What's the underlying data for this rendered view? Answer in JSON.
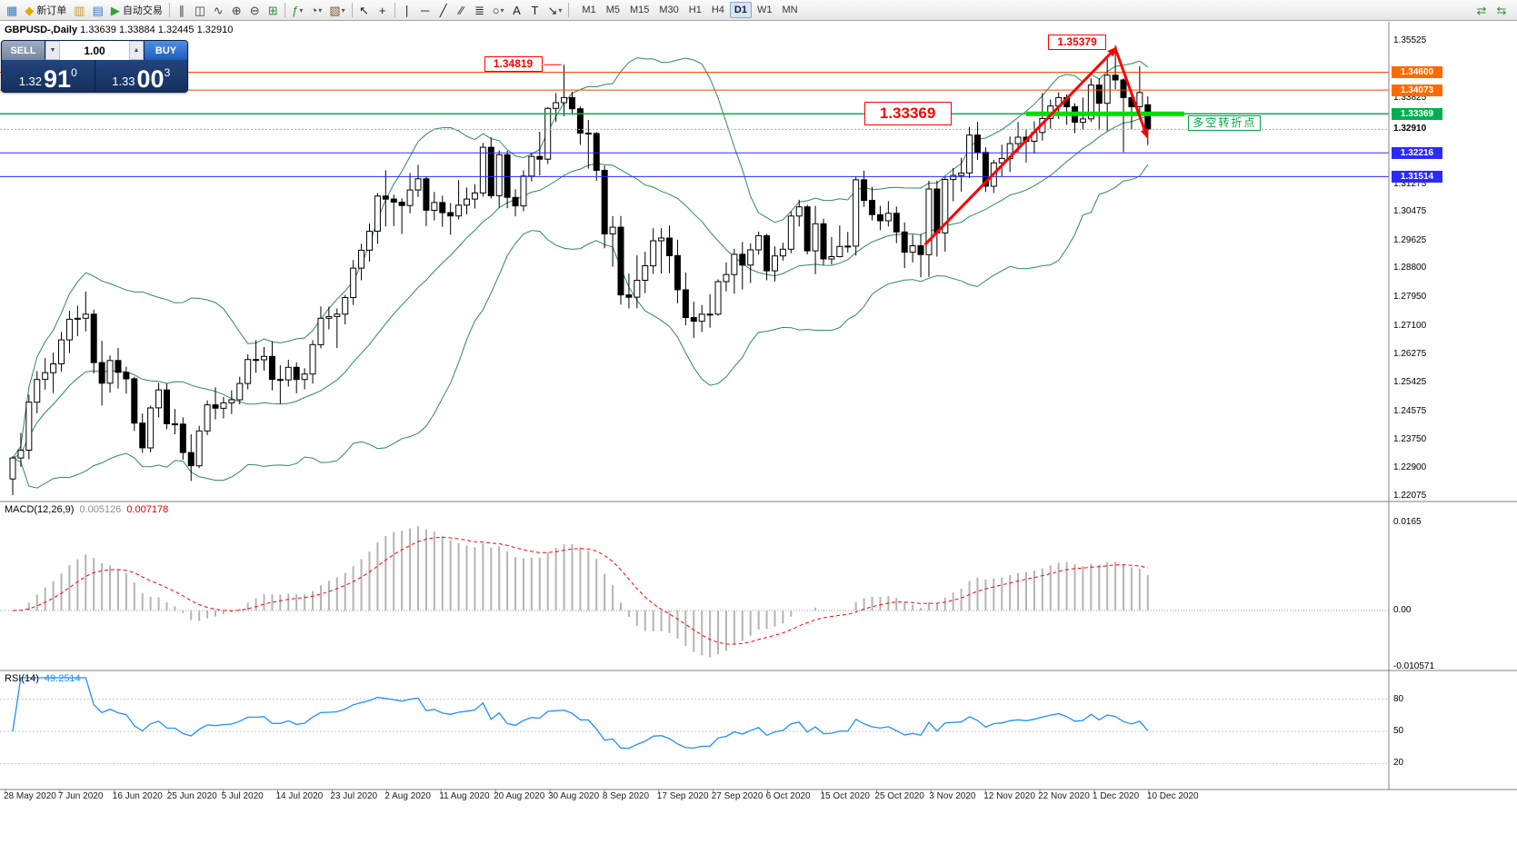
{
  "toolbar": {
    "items": [
      {
        "name": "terminal-icon",
        "glyph": "▦",
        "color": "#3a7abd"
      },
      {
        "name": "new-order-button",
        "glyph": "◆",
        "color": "#e0a800",
        "label": "新订单"
      },
      {
        "name": "charts-icon",
        "glyph": "▥",
        "color": "#c59a34"
      },
      {
        "name": "profiles-icon",
        "glyph": "▤",
        "color": "#3a7abd"
      },
      {
        "name": "autotrading-button",
        "glyph": "▶",
        "color": "#2fa52f",
        "label": "自动交易"
      },
      {
        "sep": true
      },
      {
        "name": "bar-chart-type-icon",
        "glyph": "∥",
        "color": "#444"
      },
      {
        "name": "candlestick-type-icon",
        "glyph": "◫",
        "color": "#444"
      },
      {
        "name": "line-chart-type-icon",
        "glyph": "∿",
        "color": "#444"
      },
      {
        "name": "zoom-in-icon",
        "glyph": "⊕",
        "color": "#444"
      },
      {
        "name": "zoom-out-icon",
        "glyph": "⊖",
        "color": "#444"
      },
      {
        "name": "tile-windows-icon",
        "glyph": "⊞",
        "color": "#2f8f2f"
      },
      {
        "sep": true
      },
      {
        "name": "indicators-icon",
        "glyph": "ƒ",
        "color": "#2f8f2f",
        "dropdown": true
      },
      {
        "name": "periods-icon",
        "glyph": "◔",
        "color": "#444",
        "dropdown": true
      },
      {
        "name": "templates-icon",
        "glyph": "▧",
        "color": "#7a5c2e",
        "dropdown": true
      },
      {
        "sep": true
      },
      {
        "name": "cursor-icon",
        "glyph": "↖",
        "color": "#222"
      },
      {
        "name": "crosshair-icon",
        "glyph": "+",
        "color": "#222"
      },
      {
        "sep": true
      },
      {
        "name": "vertical-line-icon",
        "glyph": "∣",
        "color": "#222"
      },
      {
        "name": "horizontal-line-icon",
        "glyph": "─",
        "color": "#222"
      },
      {
        "name": "trendline-icon",
        "glyph": "╱",
        "color": "#222"
      },
      {
        "name": "channel-icon",
        "glyph": "∕∕",
        "color": "#222"
      },
      {
        "name": "fibonacci-icon",
        "glyph": "≣",
        "color": "#222"
      },
      {
        "name": "shapes-icon",
        "glyph": "○",
        "color": "#222",
        "dropdown": true
      },
      {
        "name": "text-icon",
        "glyph": "A",
        "color": "#222"
      },
      {
        "name": "text-label-icon",
        "glyph": "T",
        "color": "#222"
      },
      {
        "name": "arrows-icon",
        "glyph": "↘",
        "color": "#222",
        "dropdown": true
      },
      {
        "sep": true
      }
    ],
    "timeframes": [
      "M1",
      "M5",
      "M15",
      "M30",
      "H1",
      "H4",
      "D1",
      "W1",
      "MN"
    ],
    "active_timeframe": "D1",
    "right_items": [
      {
        "name": "chart-shift-icon",
        "glyph": "⇄",
        "color": "#2f8f2f"
      },
      {
        "name": "auto-scroll-icon",
        "glyph": "⇆",
        "color": "#2f8f2f"
      }
    ]
  },
  "chart": {
    "title_symbol": "GBPUSD-,Daily",
    "title_ohlc": "1.33639 1.33884 1.32445 1.32910"
  },
  "one_click": {
    "sell_label": "SELL",
    "buy_label": "BUY",
    "volume": "1.00",
    "step_down": "▼",
    "step_up": "▲",
    "sell_price": {
      "head": "1.32",
      "big": "91",
      "sup": "0"
    },
    "buy_price": {
      "head": "1.33",
      "big": "00",
      "sup": "3"
    }
  },
  "annotations": {
    "price_labels": [
      {
        "text": "1.34819",
        "bar": 68,
        "price": 1.34819,
        "style": "small"
      },
      {
        "text": "1.35379",
        "bar": 136,
        "price": 1.35379,
        "style": "small"
      },
      {
        "text": "1.33369",
        "bar": 105,
        "price": 1.33369,
        "style": "large"
      }
    ],
    "note": {
      "text": "多空转折点",
      "bar": 145,
      "price": 1.33369
    },
    "trend_arrows": [
      {
        "from_bar": 112.5,
        "from_price": 1.295,
        "to_bar": 136,
        "to_price": 1.353,
        "width": 3,
        "color": "#ff0000"
      },
      {
        "from_bar": 136,
        "from_price": 1.353,
        "to_bar": 139.9,
        "to_price": 1.327,
        "width": 3,
        "color": "#ff0000"
      }
    ],
    "green_segment": {
      "price": 1.33369,
      "from_bar": 125,
      "to_bar": 144.5,
      "color": "#00dd00",
      "width": 5
    }
  },
  "chart_data": {
    "type": "candlestick",
    "symbol": "GBPUSD-",
    "timeframe": "Daily",
    "current_bar": {
      "open": 1.33639,
      "high": 1.33884,
      "low": 1.32445,
      "close": 1.3291
    },
    "bid": {
      "price": 1.3291,
      "label": "1.32910"
    },
    "y_axis_ticks": [
      "1.35525",
      "1.33825",
      "1.31275",
      "1.30475",
      "1.29625",
      "1.28800",
      "1.27950",
      "1.27100",
      "1.26275",
      "1.25425",
      "1.24575",
      "1.23750",
      "1.22900",
      "1.22075"
    ],
    "hlines": [
      {
        "price": 1.346,
        "label": "1.34600",
        "color": "#ff4000",
        "badge": "#ff6a00",
        "width": 1
      },
      {
        "price": 1.34073,
        "label": "1.34073",
        "color": "#ff4000",
        "badge": "#ff6a00",
        "width": 1
      },
      {
        "price": 1.33369,
        "label": "1.33369",
        "color": "#00b050",
        "badge": "#00b050",
        "width": 1.5
      },
      {
        "price": 1.32216,
        "label": "1.32216",
        "color": "#2a2aff",
        "badge": "#2a2aff",
        "width": 1
      },
      {
        "price": 1.31514,
        "label": "1.31514",
        "color": "#2a2aff",
        "badge": "#2a2aff",
        "width": 1
      }
    ],
    "bollinger": {
      "period": 20,
      "deviation": 2,
      "color": "#2e8b57"
    },
    "x_axis_dates": [
      "28 May 2020",
      "7 Jun 2020",
      "16 Jun 2020",
      "25 Jun 2020",
      "5 Jul 2020",
      "14 Jul 2020",
      "23 Jul 2020",
      "2 Aug 2020",
      "11 Aug 2020",
      "20 Aug 2020",
      "30 Aug 2020",
      "8 Sep 2020",
      "17 Sep 2020",
      "27 Sep 2020",
      "6 Oct 2020",
      "15 Oct 2020",
      "25 Oct 2020",
      "3 Nov 2020",
      "12 Nov 2020",
      "22 Nov 2020",
      "1 Dec 2020",
      "10 Dec 2020"
    ],
    "indicators": {
      "macd": {
        "label": "MACD(12,26,9)",
        "value_main": "0.005126",
        "value_signal": "0.007178",
        "axis": [
          {
            "t": "0.0165",
            "v": 0.0165
          },
          {
            "t": "0.00",
            "v": 0
          },
          {
            "t": "-0.010571",
            "v": -0.010571
          }
        ]
      },
      "rsi": {
        "label": "RSI(14)",
        "value": "49.2514",
        "axis": [
          {
            "t": "80",
            "v": 80
          },
          {
            "t": "50",
            "v": 50
          },
          {
            "t": "20",
            "v": 20
          }
        ]
      }
    },
    "candles": [
      [
        1.2258,
        1.2325,
        1.221,
        1.232
      ],
      [
        1.232,
        1.2394,
        1.2294,
        1.2343
      ],
      [
        1.2343,
        1.2507,
        1.2316,
        1.2485
      ],
      [
        1.2485,
        1.2577,
        1.2452,
        1.2552
      ],
      [
        1.2552,
        1.2615,
        1.2522,
        1.2572
      ],
      [
        1.2572,
        1.2631,
        1.2512,
        1.2598
      ],
      [
        1.2598,
        1.2692,
        1.2575,
        1.2669
      ],
      [
        1.2669,
        1.2755,
        1.263,
        1.273
      ],
      [
        1.273,
        1.277,
        1.268,
        1.2733
      ],
      [
        1.2733,
        1.2812,
        1.2694,
        1.2745
      ],
      [
        1.2745,
        1.2758,
        1.257,
        1.2602
      ],
      [
        1.2602,
        1.2666,
        1.2475,
        1.2541
      ],
      [
        1.2541,
        1.2623,
        1.2513,
        1.2608
      ],
      [
        1.2608,
        1.2645,
        1.2525,
        1.2573
      ],
      [
        1.2573,
        1.259,
        1.251,
        1.2554
      ],
      [
        1.2554,
        1.256,
        1.24,
        1.2423
      ],
      [
        1.2423,
        1.2451,
        1.2335,
        1.235
      ],
      [
        1.235,
        1.2475,
        1.2337,
        1.2468
      ],
      [
        1.2468,
        1.2542,
        1.244,
        1.2521
      ],
      [
        1.2521,
        1.254,
        1.2405,
        1.2421
      ],
      [
        1.2421,
        1.2465,
        1.239,
        1.242
      ],
      [
        1.242,
        1.244,
        1.2315,
        1.2336
      ],
      [
        1.2336,
        1.239,
        1.2252,
        1.2297
      ],
      [
        1.2297,
        1.2415,
        1.229,
        1.24
      ],
      [
        1.24,
        1.249,
        1.2388,
        1.2477
      ],
      [
        1.2477,
        1.2529,
        1.2434,
        1.2467
      ],
      [
        1.2467,
        1.25,
        1.2437,
        1.2483
      ],
      [
        1.2483,
        1.252,
        1.245,
        1.2492
      ],
      [
        1.2492,
        1.256,
        1.2478,
        1.254
      ],
      [
        1.254,
        1.2626,
        1.2523,
        1.2611
      ],
      [
        1.2611,
        1.2668,
        1.2572,
        1.261
      ],
      [
        1.261,
        1.2648,
        1.2578,
        1.262
      ],
      [
        1.262,
        1.2665,
        1.252,
        1.2552
      ],
      [
        1.2552,
        1.2594,
        1.248,
        1.2551
      ],
      [
        1.2551,
        1.261,
        1.2531,
        1.2588
      ],
      [
        1.2588,
        1.2603,
        1.2511,
        1.2552
      ],
      [
        1.2552,
        1.2585,
        1.2523,
        1.2568
      ],
      [
        1.2568,
        1.2668,
        1.254,
        1.2655
      ],
      [
        1.2655,
        1.2768,
        1.2644,
        1.2733
      ],
      [
        1.2733,
        1.2767,
        1.27,
        1.2738
      ],
      [
        1.2738,
        1.2762,
        1.2645,
        1.2745
      ],
      [
        1.2745,
        1.2802,
        1.2715,
        1.2794
      ],
      [
        1.2794,
        1.2905,
        1.2772,
        1.2881
      ],
      [
        1.2881,
        1.2953,
        1.2845,
        1.2934
      ],
      [
        1.2934,
        1.3013,
        1.29,
        1.299
      ],
      [
        1.299,
        1.3103,
        1.2953,
        1.3094
      ],
      [
        1.3094,
        1.317,
        1.3004,
        1.3085
      ],
      [
        1.3085,
        1.3098,
        1.3005,
        1.3076
      ],
      [
        1.3076,
        1.3087,
        1.2982,
        1.3066
      ],
      [
        1.3066,
        1.3162,
        1.3043,
        1.3112
      ],
      [
        1.3112,
        1.3186,
        1.3091,
        1.3145
      ],
      [
        1.3145,
        1.3152,
        1.3005,
        1.3052
      ],
      [
        1.3052,
        1.3106,
        1.3022,
        1.3075
      ],
      [
        1.3075,
        1.3095,
        1.3003,
        1.3045
      ],
      [
        1.3045,
        1.3073,
        1.298,
        1.3035
      ],
      [
        1.3035,
        1.3141,
        1.3025,
        1.3067
      ],
      [
        1.3067,
        1.3119,
        1.304,
        1.3085
      ],
      [
        1.3085,
        1.3129,
        1.3057,
        1.3103
      ],
      [
        1.3103,
        1.3251,
        1.3092,
        1.3238
      ],
      [
        1.3238,
        1.3267,
        1.3087,
        1.3095
      ],
      [
        1.3095,
        1.3229,
        1.306,
        1.3216
      ],
      [
        1.3216,
        1.3228,
        1.3058,
        1.309
      ],
      [
        1.309,
        1.3114,
        1.3034,
        1.3065
      ],
      [
        1.3065,
        1.317,
        1.3049,
        1.3153
      ],
      [
        1.3153,
        1.3222,
        1.3137,
        1.3211
      ],
      [
        1.3211,
        1.3284,
        1.3155,
        1.3203
      ],
      [
        1.3203,
        1.3357,
        1.3189,
        1.3353
      ],
      [
        1.3353,
        1.3398,
        1.3313,
        1.337
      ],
      [
        1.337,
        1.3482,
        1.333,
        1.3385
      ],
      [
        1.3385,
        1.3402,
        1.3334,
        1.3352
      ],
      [
        1.3352,
        1.3359,
        1.3245,
        1.328
      ],
      [
        1.328,
        1.3319,
        1.3175,
        1.3279
      ],
      [
        1.3279,
        1.3283,
        1.3139,
        1.317
      ],
      [
        1.317,
        1.3184,
        1.294,
        1.2982
      ],
      [
        1.2982,
        1.3035,
        1.2885,
        1.3002
      ],
      [
        1.3002,
        1.3035,
        1.2773,
        1.2802
      ],
      [
        1.2802,
        1.2865,
        1.2762,
        1.2795
      ],
      [
        1.2795,
        1.2919,
        1.2763,
        1.2845
      ],
      [
        1.2845,
        1.2929,
        1.2807,
        1.2888
      ],
      [
        1.2888,
        1.2999,
        1.2864,
        1.2962
      ],
      [
        1.2962,
        1.2999,
        1.2865,
        1.297
      ],
      [
        1.297,
        1.3007,
        1.2866,
        1.2918
      ],
      [
        1.2918,
        1.2965,
        1.2777,
        1.2817
      ],
      [
        1.2817,
        1.2868,
        1.2712,
        1.2735
      ],
      [
        1.2735,
        1.2782,
        1.2675,
        1.2724
      ],
      [
        1.2724,
        1.2772,
        1.2692,
        1.2745
      ],
      [
        1.2745,
        1.2804,
        1.2705,
        1.2745
      ],
      [
        1.2745,
        1.2848,
        1.274,
        1.2841
      ],
      [
        1.2841,
        1.2898,
        1.2812,
        1.2862
      ],
      [
        1.2862,
        1.2938,
        1.2805,
        1.2922
      ],
      [
        1.2922,
        1.2958,
        1.2818,
        1.289
      ],
      [
        1.289,
        1.2954,
        1.2837,
        1.2935
      ],
      [
        1.2935,
        1.2989,
        1.2921,
        1.2977
      ],
      [
        1.2977,
        1.2982,
        1.2845,
        1.2873
      ],
      [
        1.2873,
        1.2945,
        1.2842,
        1.2917
      ],
      [
        1.2917,
        1.2956,
        1.2903,
        1.2937
      ],
      [
        1.2937,
        1.3049,
        1.2925,
        1.3035
      ],
      [
        1.3035,
        1.3083,
        1.3004,
        1.3062
      ],
      [
        1.3062,
        1.3068,
        1.2922,
        1.2932
      ],
      [
        1.2932,
        1.3065,
        1.2863,
        1.3012
      ],
      [
        1.3012,
        1.3027,
        1.289,
        1.2908
      ],
      [
        1.2908,
        1.2973,
        1.2892,
        1.2915
      ],
      [
        1.2915,
        1.3007,
        1.2913,
        1.2945
      ],
      [
        1.2945,
        1.2988,
        1.2927,
        1.2946
      ],
      [
        1.2946,
        1.3152,
        1.2918,
        1.3142
      ],
      [
        1.3142,
        1.3169,
        1.3062,
        1.3081
      ],
      [
        1.3081,
        1.3121,
        1.3022,
        1.3039
      ],
      [
        1.3039,
        1.3065,
        1.2993,
        1.3021
      ],
      [
        1.3021,
        1.3079,
        1.3004,
        1.3043
      ],
      [
        1.3043,
        1.3063,
        1.2955,
        1.2988
      ],
      [
        1.2988,
        1.3016,
        1.2881,
        1.2928
      ],
      [
        1.2928,
        1.298,
        1.2898,
        1.2947
      ],
      [
        1.2947,
        1.2982,
        1.2854,
        1.2921
      ],
      [
        1.2921,
        1.3139,
        1.2855,
        1.3115
      ],
      [
        1.3115,
        1.314,
        1.2915,
        1.2985
      ],
      [
        1.2985,
        1.3152,
        1.293,
        1.3143
      ],
      [
        1.3143,
        1.3177,
        1.3078,
        1.3155
      ],
      [
        1.3155,
        1.3207,
        1.3107,
        1.3162
      ],
      [
        1.3162,
        1.3298,
        1.3147,
        1.3274
      ],
      [
        1.3274,
        1.3313,
        1.3201,
        1.3223
      ],
      [
        1.3223,
        1.3238,
        1.3106,
        1.3123
      ],
      [
        1.3123,
        1.3201,
        1.3103,
        1.3192
      ],
      [
        1.3192,
        1.3246,
        1.3152,
        1.3205
      ],
      [
        1.3205,
        1.327,
        1.3165,
        1.3249
      ],
      [
        1.3249,
        1.3313,
        1.3224,
        1.3268
      ],
      [
        1.3268,
        1.329,
        1.3193,
        1.3256
      ],
      [
        1.3256,
        1.3315,
        1.3219,
        1.3282
      ],
      [
        1.3282,
        1.3398,
        1.3258,
        1.3323
      ],
      [
        1.3323,
        1.3379,
        1.3293,
        1.336
      ],
      [
        1.336,
        1.34,
        1.3322,
        1.3385
      ],
      [
        1.3385,
        1.3394,
        1.3305,
        1.3358
      ],
      [
        1.3358,
        1.3368,
        1.328,
        1.3312
      ],
      [
        1.3312,
        1.3385,
        1.3291,
        1.3322
      ],
      [
        1.3322,
        1.3442,
        1.3313,
        1.3422
      ],
      [
        1.3422,
        1.3442,
        1.3289,
        1.3368
      ],
      [
        1.3368,
        1.35,
        1.3286,
        1.3451
      ],
      [
        1.3451,
        1.3539,
        1.341,
        1.3437
      ],
      [
        1.3437,
        1.3442,
        1.3224,
        1.3385
      ],
      [
        1.3385,
        1.3394,
        1.329,
        1.3358
      ],
      [
        1.3358,
        1.3478,
        1.3334,
        1.34
      ],
      [
        1.33639,
        1.33884,
        1.32445,
        1.3291
      ]
    ]
  }
}
